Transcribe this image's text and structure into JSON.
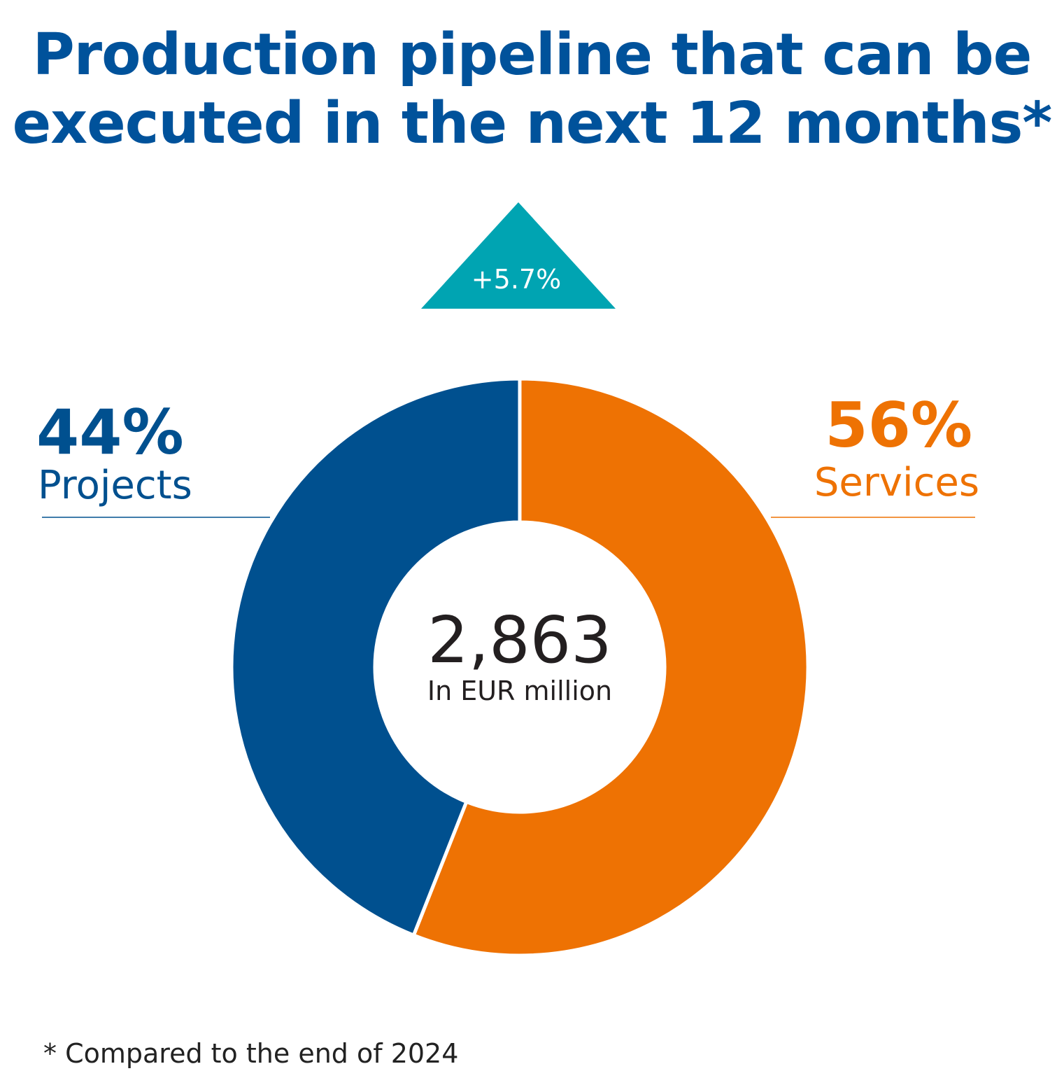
{
  "title": {
    "line1": "Production pipeline that can be",
    "line2": "executed in the next 12 months*"
  },
  "change_badge": "+5.7%",
  "footnote": "* Compared to the end of 2024",
  "colors": {
    "title": "#00529b",
    "projects": "#00508f",
    "services": "#ee7203",
    "badge": "#00a4b2",
    "center_text": "#231f20"
  },
  "chart_data": {
    "type": "pie",
    "donut": true,
    "total": "2,863",
    "unit": "In EUR million",
    "slices": [
      {
        "label": "Services",
        "value": 56,
        "value_label": "56%",
        "color": "#ee7203"
      },
      {
        "label": "Projects",
        "value": 44,
        "value_label": "44%",
        "color": "#00508f"
      }
    ]
  }
}
